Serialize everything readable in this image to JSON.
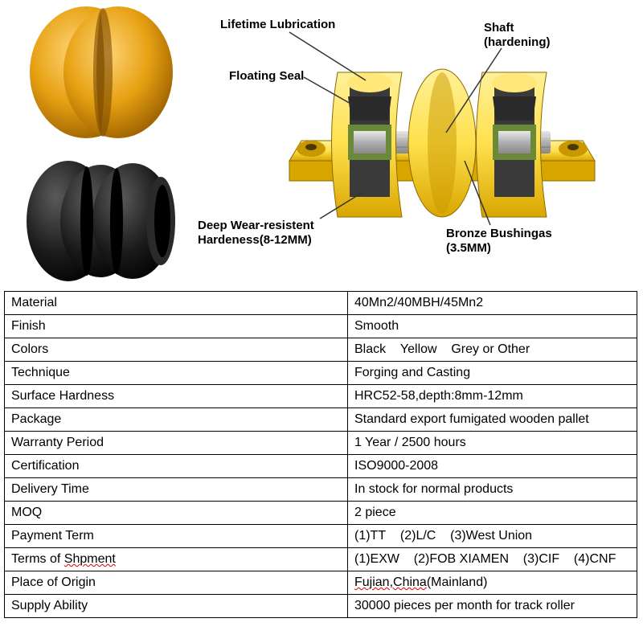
{
  "diagram": {
    "labels": {
      "lifetime_lub": "Lifetime Lubrication",
      "shaft_line1": "Shaft",
      "shaft_line2": "(hardening)",
      "floating_seal": "Floating Seal",
      "deep_wear_line1": "Deep Wear-resistent",
      "deep_wear_line2": "Hardeness(8-12MM)",
      "bronze_line1": "Bronze Bushingas",
      "bronze_line2": "(3.5MM)"
    },
    "colors": {
      "roller_yellow_main": "#e6a112",
      "roller_yellow_shadow": "#b57500",
      "roller_yellow_highlight": "#ffd477",
      "roller_black_main": "#1a1a1a",
      "roller_black_highlight": "#4a4a4a",
      "cutaway_body": "#ffe04d",
      "cutaway_body_shade": "#e6b800",
      "cutaway_inner": "#3a3a3a",
      "cutaway_shaft": "#b8b8b8",
      "cutaway_green": "#6a8a3a",
      "leader_color": "#333333"
    },
    "label_font_size": 15,
    "label_font_weight": "bold"
  },
  "table": {
    "rows": [
      {
        "key": "Material",
        "value": "40Mn2/40MBH/45Mn2"
      },
      {
        "key": "Finish",
        "value": "Smooth"
      },
      {
        "key": "Colors",
        "value": "Black    Yellow    Grey or Other"
      },
      {
        "key": "Technique",
        "value": "Forging and Casting"
      },
      {
        "key": "Surface Hardness",
        "value": "HRC52-58,depth:8mm-12mm"
      },
      {
        "key": "Package",
        "value": "Standard export fumigated wooden pallet"
      },
      {
        "key": "Warranty Period",
        "value": "1 Year / 2500 hours"
      },
      {
        "key": "Certification",
        "value": "ISO9000-2008"
      },
      {
        "key": "Delivery Time",
        "value": "In stock for normal products"
      },
      {
        "key": "MOQ",
        "value": "2 piece"
      },
      {
        "key": "Payment Term",
        "value": "(1)TT    (2)L/C    (3)West Union"
      },
      {
        "key": "Terms of Shpment",
        "key_squiggle": true,
        "value": "(1)EXW    (2)FOB XIAMEN    (3)CIF    (4)CNF"
      },
      {
        "key": "Place of Origin",
        "value": "Fujian,China(Mainland)",
        "value_squiggle_word": "Fujian,China(Mainland)"
      },
      {
        "key": "Supply Ability",
        "value": "30000 pieces per month for track roller"
      }
    ],
    "border_color": "#000000",
    "font_size": 16,
    "key_col_width": 410,
    "total_width": 788
  }
}
